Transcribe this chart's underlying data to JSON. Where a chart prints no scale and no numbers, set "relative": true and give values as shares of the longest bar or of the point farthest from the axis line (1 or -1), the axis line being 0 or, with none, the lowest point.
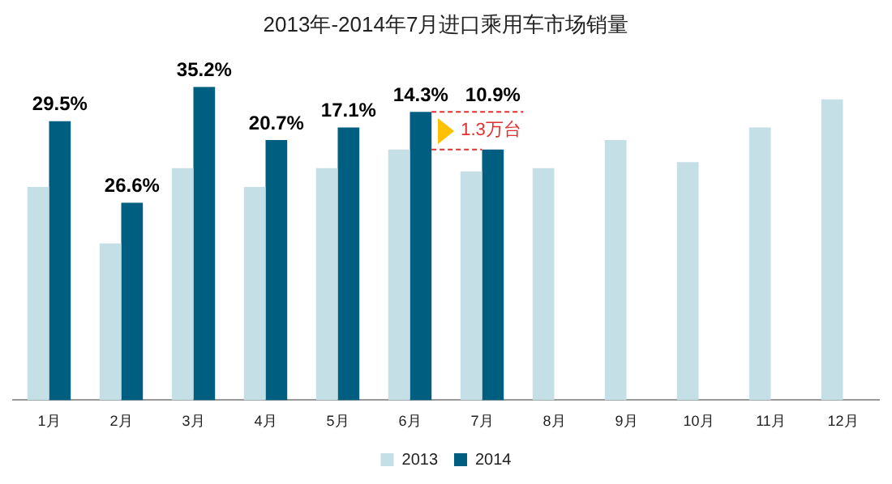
{
  "chart_data": {
    "type": "bar",
    "title": "2013年-2014年7月进口乘用车市场销量",
    "relative": true,
    "legend": "bottom",
    "categories": [
      "1月",
      "2月",
      "3月",
      "4月",
      "5月",
      "6月",
      "7月",
      "8月",
      "9月",
      "10月",
      "11月",
      "12月"
    ],
    "series": [
      {
        "name": "2013",
        "color": "#c5dfe6",
        "values": [
          0.68,
          0.5,
          0.74,
          0.68,
          0.74,
          0.8,
          0.73,
          0.74,
          0.83,
          0.76,
          0.87,
          0.96
        ]
      },
      {
        "name": "2014",
        "color": "#005e80",
        "values": [
          0.89,
          0.63,
          1,
          0.83,
          0.87,
          0.92,
          0.8,
          null,
          null,
          null,
          null,
          null
        ]
      }
    ],
    "annotations": [
      {
        "text": "29.5%",
        "x": "1月",
        "y": 0.89
      },
      {
        "text": "26.6%",
        "x": "2月",
        "y": 0.63
      },
      {
        "text": "35.2%",
        "x": "3月",
        "y": 1
      },
      {
        "text": "20.7%",
        "x": "4月",
        "y": 0.83
      },
      {
        "text": "17.1%",
        "x": "5月",
        "y": 0.87
      },
      {
        "text": "14.3%",
        "x": "6月",
        "y": 0.92
      },
      {
        "text": "10.9%",
        "x": "7月",
        "y": 0.8
      },
      "1.3万台"
    ]
  }
}
